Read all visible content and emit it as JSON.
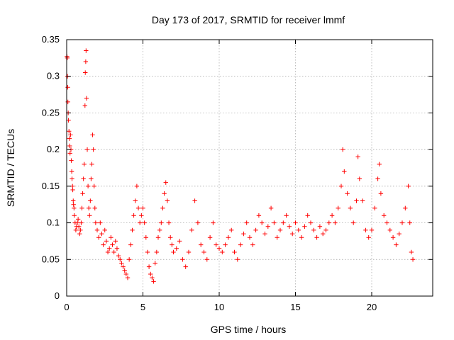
{
  "chart_data": {
    "type": "scatter",
    "title": "Day 173 of 2017, SRMTID for receiver lmmf",
    "xlabel": "GPS time / hours",
    "ylabel": "SRMTID / TECUs",
    "xlim": [
      0,
      24
    ],
    "ylim": [
      0,
      0.35
    ],
    "xticks": [
      0,
      5,
      10,
      15,
      20
    ],
    "xtick_labels": [
      "0",
      "5",
      "10",
      "15",
      "20"
    ],
    "yticks": [
      0,
      0.05,
      0.1,
      0.15,
      0.2,
      0.25,
      0.3,
      0.35
    ],
    "ytick_labels": [
      "0",
      "0.05",
      "0.1",
      "0.15",
      "0.2",
      "0.25",
      "0.3",
      "0.35"
    ],
    "grid": true,
    "marker": "+",
    "color": "#ff0000",
    "series": [
      {
        "name": "SRMTID",
        "points": [
          [
            0.02,
            0.327
          ],
          [
            0.04,
            0.325
          ],
          [
            0.05,
            0.3
          ],
          [
            0.07,
            0.285
          ],
          [
            0.08,
            0.265
          ],
          [
            0.1,
            0.25
          ],
          [
            0.12,
            0.24
          ],
          [
            0.15,
            0.225
          ],
          [
            0.18,
            0.215
          ],
          [
            0.2,
            0.205
          ],
          [
            0.22,
            0.195
          ],
          [
            0.25,
            0.22
          ],
          [
            0.28,
            0.2
          ],
          [
            0.3,
            0.185
          ],
          [
            0.33,
            0.17
          ],
          [
            0.35,
            0.16
          ],
          [
            0.38,
            0.15
          ],
          [
            0.4,
            0.145
          ],
          [
            0.43,
            0.13
          ],
          [
            0.45,
            0.125
          ],
          [
            0.48,
            0.12
          ],
          [
            0.5,
            0.11
          ],
          [
            0.55,
            0.1
          ],
          [
            0.6,
            0.09
          ],
          [
            0.65,
            0.095
          ],
          [
            0.7,
            0.1
          ],
          [
            0.75,
            0.105
          ],
          [
            0.8,
            0.095
          ],
          [
            0.85,
            0.085
          ],
          [
            0.9,
            0.09
          ],
          [
            0.95,
            0.1
          ],
          [
            1.0,
            0.12
          ],
          [
            1.05,
            0.14
          ],
          [
            1.1,
            0.16
          ],
          [
            1.15,
            0.18
          ],
          [
            1.2,
            0.26
          ],
          [
            1.22,
            0.305
          ],
          [
            1.25,
            0.32
          ],
          [
            1.27,
            0.335
          ],
          [
            1.3,
            0.27
          ],
          [
            1.35,
            0.2
          ],
          [
            1.4,
            0.15
          ],
          [
            1.45,
            0.12
          ],
          [
            1.5,
            0.11
          ],
          [
            1.55,
            0.13
          ],
          [
            1.6,
            0.16
          ],
          [
            1.65,
            0.18
          ],
          [
            1.7,
            0.22
          ],
          [
            1.75,
            0.2
          ],
          [
            1.8,
            0.15
          ],
          [
            1.85,
            0.12
          ],
          [
            1.9,
            0.1
          ],
          [
            2.0,
            0.09
          ],
          [
            2.1,
            0.08
          ],
          [
            2.2,
            0.1
          ],
          [
            2.3,
            0.085
          ],
          [
            2.4,
            0.07
          ],
          [
            2.5,
            0.09
          ],
          [
            2.6,
            0.075
          ],
          [
            2.7,
            0.06
          ],
          [
            2.8,
            0.065
          ],
          [
            2.9,
            0.08
          ],
          [
            3.0,
            0.07
          ],
          [
            3.1,
            0.06
          ],
          [
            3.2,
            0.075
          ],
          [
            3.3,
            0.065
          ],
          [
            3.4,
            0.055
          ],
          [
            3.5,
            0.05
          ],
          [
            3.6,
            0.045
          ],
          [
            3.7,
            0.04
          ],
          [
            3.8,
            0.035
          ],
          [
            3.9,
            0.03
          ],
          [
            4.0,
            0.025
          ],
          [
            4.1,
            0.05
          ],
          [
            4.2,
            0.07
          ],
          [
            4.3,
            0.09
          ],
          [
            4.4,
            0.11
          ],
          [
            4.5,
            0.13
          ],
          [
            4.6,
            0.15
          ],
          [
            4.7,
            0.12
          ],
          [
            4.8,
            0.1
          ],
          [
            4.9,
            0.11
          ],
          [
            5.0,
            0.12
          ],
          [
            5.1,
            0.1
          ],
          [
            5.2,
            0.08
          ],
          [
            5.3,
            0.06
          ],
          [
            5.4,
            0.04
          ],
          [
            5.5,
            0.03
          ],
          [
            5.6,
            0.025
          ],
          [
            5.7,
            0.02
          ],
          [
            5.8,
            0.045
          ],
          [
            5.9,
            0.06
          ],
          [
            6.0,
            0.08
          ],
          [
            6.1,
            0.09
          ],
          [
            6.2,
            0.1
          ],
          [
            6.3,
            0.12
          ],
          [
            6.4,
            0.14
          ],
          [
            6.5,
            0.155
          ],
          [
            6.6,
            0.13
          ],
          [
            6.7,
            0.1
          ],
          [
            6.8,
            0.08
          ],
          [
            6.9,
            0.07
          ],
          [
            7.0,
            0.06
          ],
          [
            7.2,
            0.065
          ],
          [
            7.4,
            0.075
          ],
          [
            7.6,
            0.05
          ],
          [
            7.8,
            0.04
          ],
          [
            8.0,
            0.06
          ],
          [
            8.2,
            0.09
          ],
          [
            8.4,
            0.13
          ],
          [
            8.6,
            0.1
          ],
          [
            8.8,
            0.07
          ],
          [
            9.0,
            0.06
          ],
          [
            9.2,
            0.05
          ],
          [
            9.4,
            0.08
          ],
          [
            9.6,
            0.1
          ],
          [
            9.8,
            0.07
          ],
          [
            10.0,
            0.065
          ],
          [
            10.2,
            0.06
          ],
          [
            10.4,
            0.07
          ],
          [
            10.6,
            0.08
          ],
          [
            10.8,
            0.09
          ],
          [
            11.0,
            0.06
          ],
          [
            11.2,
            0.05
          ],
          [
            11.4,
            0.07
          ],
          [
            11.6,
            0.085
          ],
          [
            11.8,
            0.1
          ],
          [
            12.0,
            0.08
          ],
          [
            12.2,
            0.07
          ],
          [
            12.4,
            0.09
          ],
          [
            12.6,
            0.11
          ],
          [
            12.8,
            0.1
          ],
          [
            13.0,
            0.085
          ],
          [
            13.2,
            0.095
          ],
          [
            13.4,
            0.12
          ],
          [
            13.6,
            0.1
          ],
          [
            13.8,
            0.08
          ],
          [
            14.0,
            0.09
          ],
          [
            14.2,
            0.1
          ],
          [
            14.4,
            0.11
          ],
          [
            14.6,
            0.095
          ],
          [
            14.8,
            0.085
          ],
          [
            15.0,
            0.1
          ],
          [
            15.2,
            0.09
          ],
          [
            15.4,
            0.08
          ],
          [
            15.6,
            0.095
          ],
          [
            15.8,
            0.11
          ],
          [
            16.0,
            0.1
          ],
          [
            16.2,
            0.09
          ],
          [
            16.4,
            0.08
          ],
          [
            16.6,
            0.095
          ],
          [
            16.8,
            0.085
          ],
          [
            17.0,
            0.09
          ],
          [
            17.2,
            0.1
          ],
          [
            17.4,
            0.11
          ],
          [
            17.6,
            0.1
          ],
          [
            17.8,
            0.12
          ],
          [
            18.0,
            0.15
          ],
          [
            18.1,
            0.2
          ],
          [
            18.2,
            0.17
          ],
          [
            18.4,
            0.14
          ],
          [
            18.6,
            0.12
          ],
          [
            18.8,
            0.1
          ],
          [
            19.0,
            0.13
          ],
          [
            19.1,
            0.19
          ],
          [
            19.2,
            0.16
          ],
          [
            19.4,
            0.13
          ],
          [
            19.6,
            0.09
          ],
          [
            19.8,
            0.08
          ],
          [
            20.0,
            0.09
          ],
          [
            20.2,
            0.12
          ],
          [
            20.4,
            0.16
          ],
          [
            20.5,
            0.18
          ],
          [
            20.6,
            0.14
          ],
          [
            20.8,
            0.11
          ],
          [
            21.0,
            0.1
          ],
          [
            21.2,
            0.09
          ],
          [
            21.4,
            0.08
          ],
          [
            21.6,
            0.07
          ],
          [
            21.8,
            0.085
          ],
          [
            22.0,
            0.1
          ],
          [
            22.2,
            0.12
          ],
          [
            22.4,
            0.15
          ],
          [
            22.5,
            0.1
          ],
          [
            22.6,
            0.06
          ],
          [
            22.7,
            0.05
          ]
        ]
      }
    ]
  }
}
